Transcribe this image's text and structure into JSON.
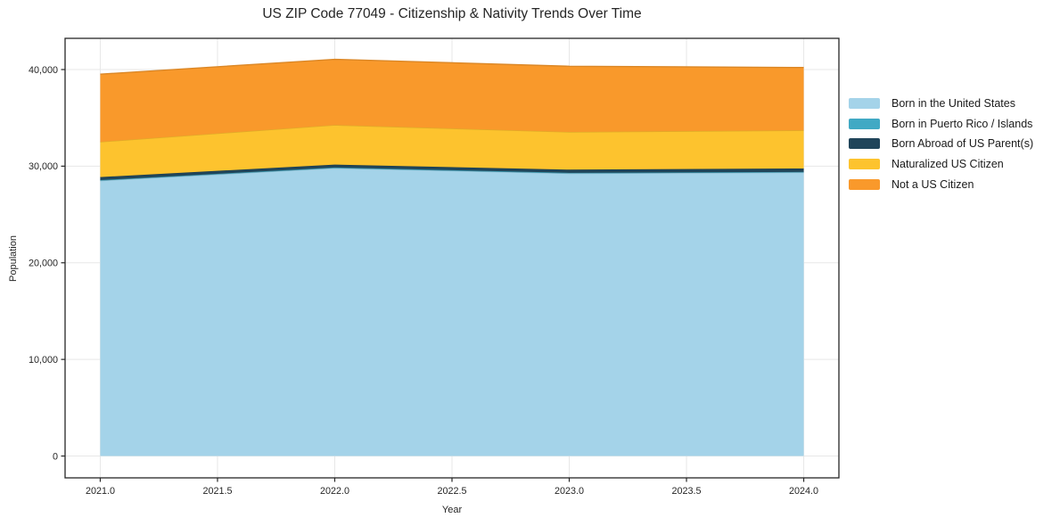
{
  "title": "US ZIP Code 77049 - Citizenship & Nativity Trends Over Time",
  "chart_data": {
    "type": "area",
    "stacked": true,
    "title": "US ZIP Code 77049 - Citizenship & Nativity Trends Over Time",
    "xlabel": "Year",
    "ylabel": "Population",
    "x": [
      2021,
      2022,
      2023,
      2024
    ],
    "series": [
      {
        "name": "Born in the United States",
        "color": "#a4d3e9",
        "values": [
          28500,
          29800,
          29250,
          29350
        ]
      },
      {
        "name": "Born in Puerto Rico / Islands",
        "color": "#41a9c4",
        "values": [
          60,
          60,
          60,
          60
        ]
      },
      {
        "name": "Born Abroad of US Parent(s)",
        "color": "#20455a",
        "values": [
          310,
          300,
          330,
          350
        ]
      },
      {
        "name": "Naturalized US Citizen",
        "color": "#fdc32e",
        "values": [
          3650,
          4100,
          3900,
          3950
        ]
      },
      {
        "name": "Not a US Citizen",
        "color": "#f9992b",
        "values": [
          7000,
          6800,
          6800,
          6500
        ]
      }
    ],
    "xticks": {
      "values": [
        2021,
        2021.5,
        2022,
        2022.5,
        2023,
        2023.5,
        2024
      ],
      "labels": [
        "2021.0",
        "2021.5",
        "2022.0",
        "2022.5",
        "2023.0",
        "2023.5",
        "2024.0"
      ]
    },
    "yticks": {
      "values": [
        0,
        10000,
        20000,
        30000,
        40000
      ],
      "labels": [
        "0",
        "10,000",
        "20,000",
        "30,000",
        "40,000"
      ]
    },
    "xlim": [
      2020.85,
      2024.15
    ],
    "ylim": [
      -2260,
      43230
    ],
    "grid": true,
    "grid_color": "#e7e7e7",
    "axis_color": "#262626",
    "legend_position": "right-outside"
  }
}
